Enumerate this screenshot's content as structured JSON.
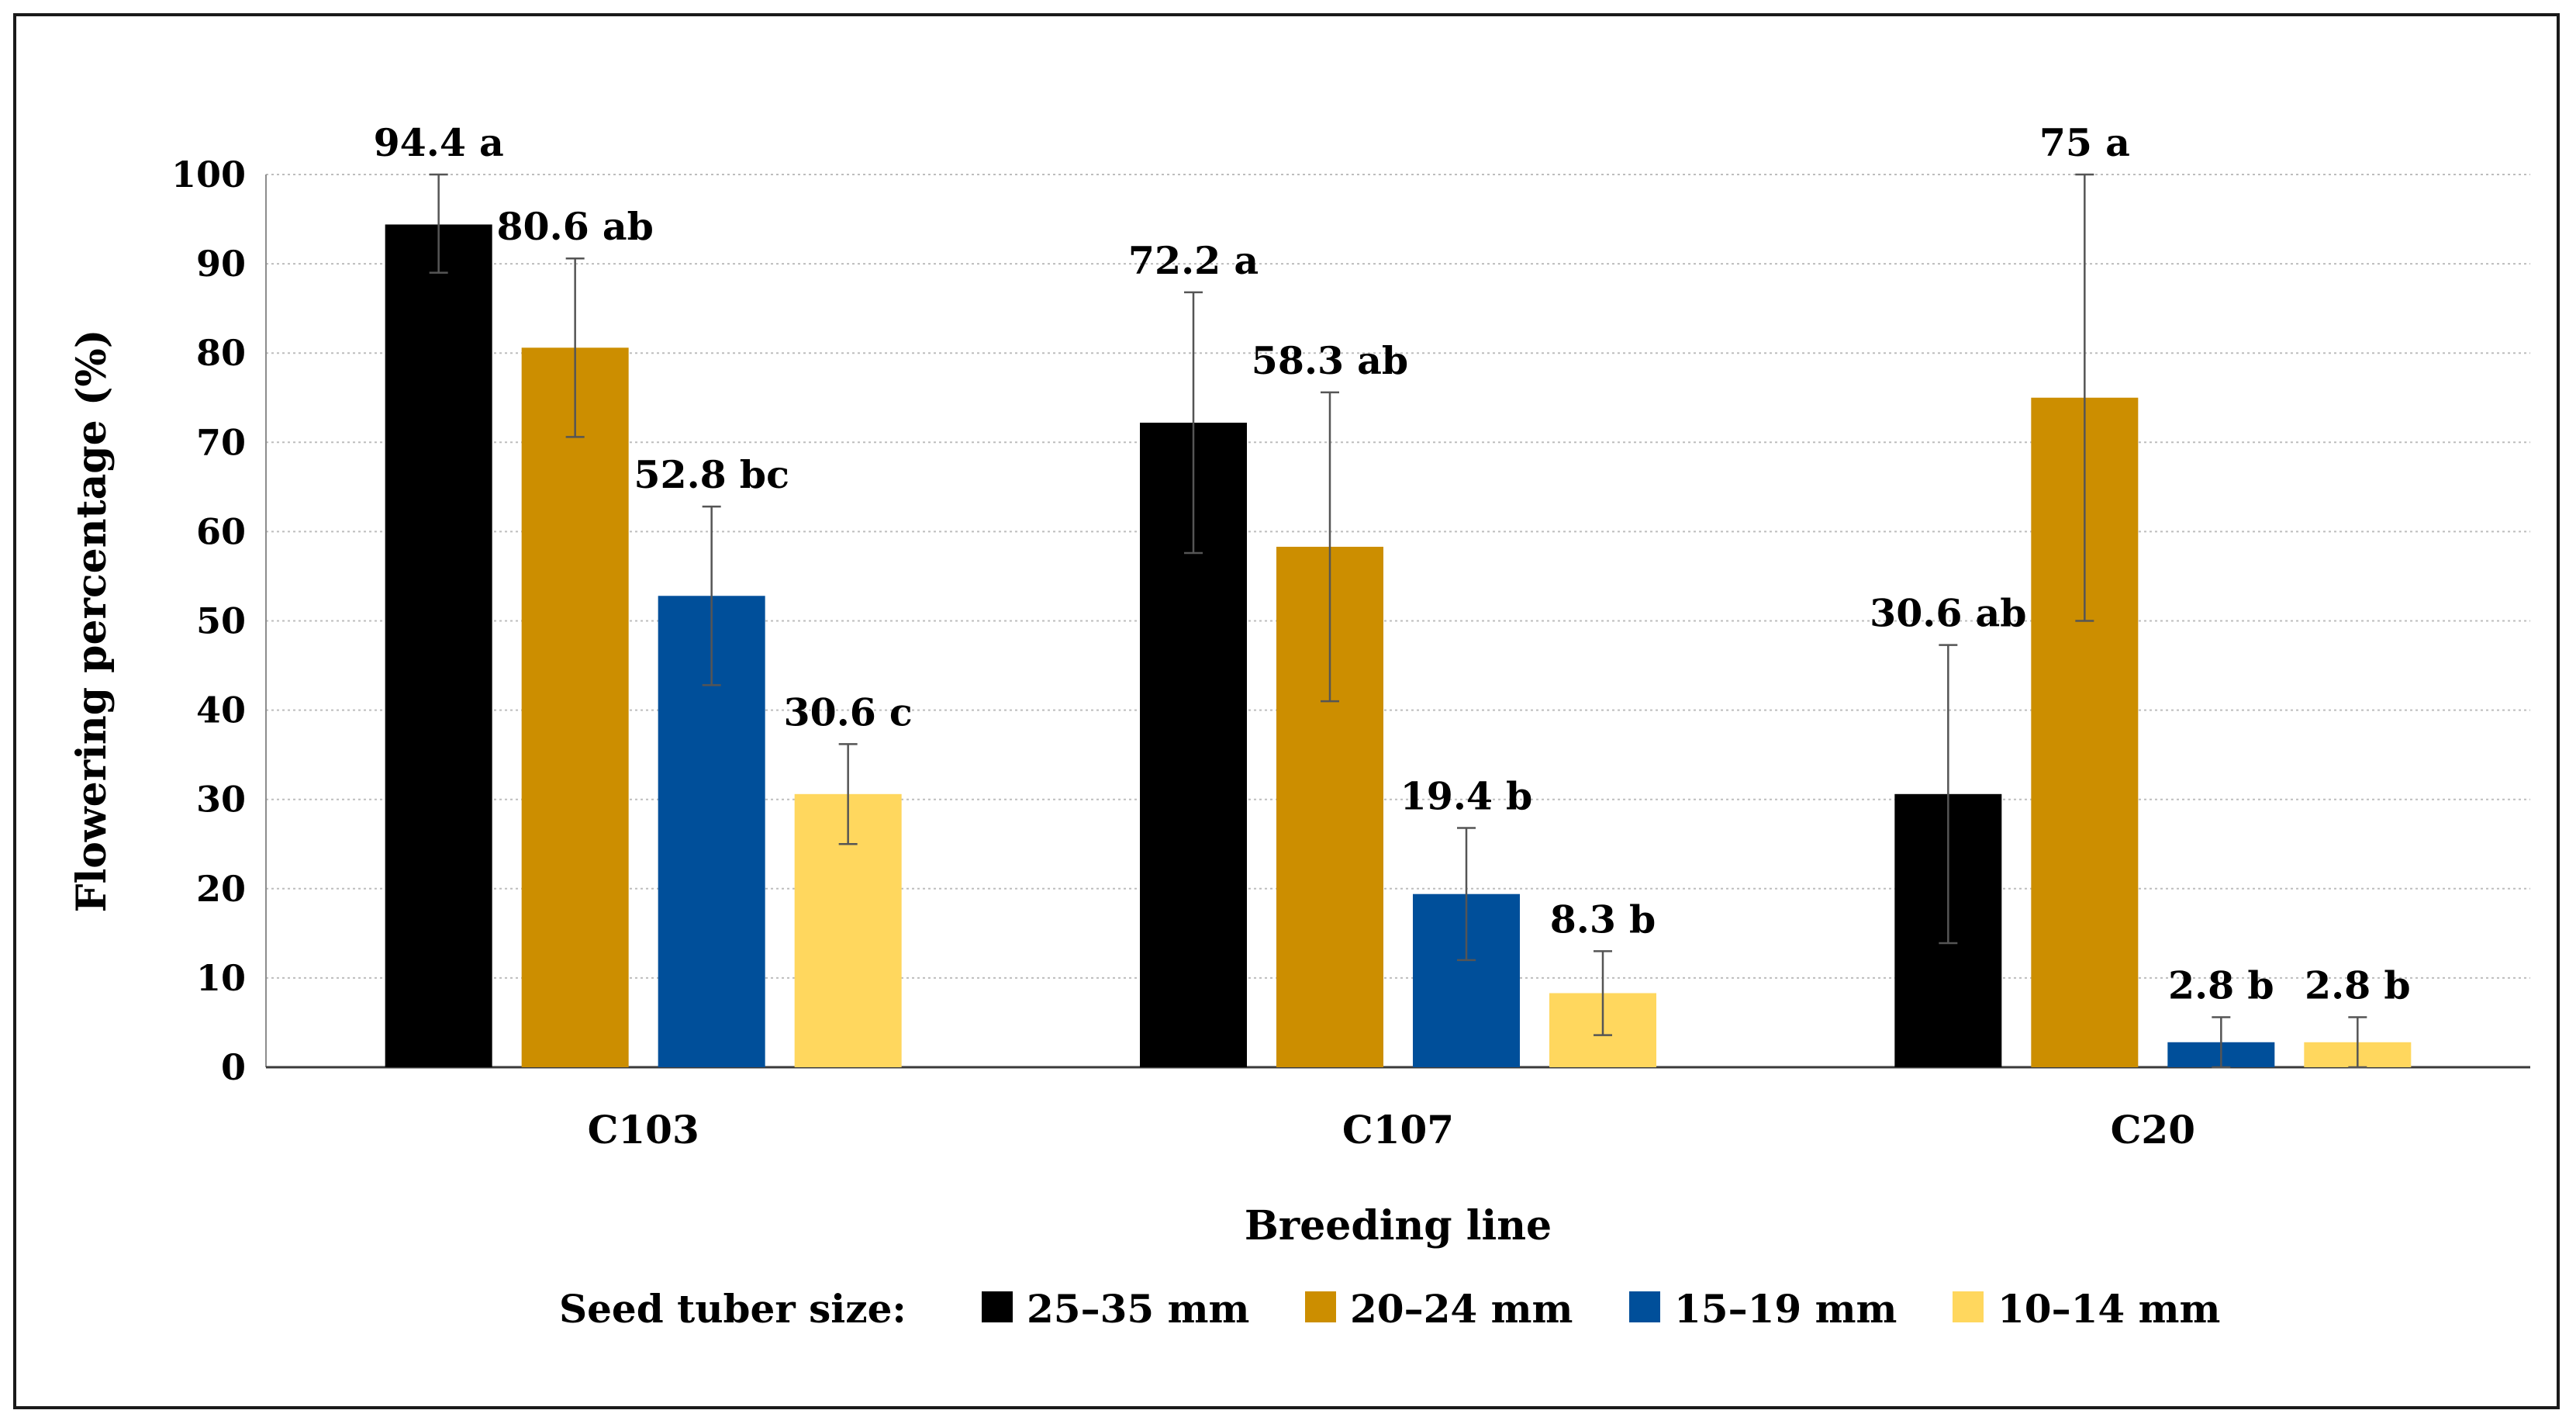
{
  "chart_data": {
    "type": "bar",
    "title": "",
    "xlabel": "Breeding line",
    "ylabel": "Flowering percentage (%)",
    "ylim": [
      0,
      100
    ],
    "yticks": [
      0,
      10,
      20,
      30,
      40,
      50,
      60,
      70,
      80,
      90,
      100
    ],
    "grid": "horizontal dotted",
    "categories": [
      "C103",
      "C107",
      "C20"
    ],
    "series": [
      {
        "name": "25–35 mm",
        "color": "#000000",
        "values": [
          94.4,
          72.2,
          30.6
        ],
        "error_low": [
          89.0,
          57.6,
          13.9
        ],
        "error_high": [
          100.0,
          86.8,
          47.3
        ],
        "labels": [
          "94.4 a",
          "72.2 a",
          "30.6 ab"
        ]
      },
      {
        "name": "20–24 mm",
        "color": "#CC8E00",
        "values": [
          80.6,
          58.3,
          75.0
        ],
        "error_low": [
          70.6,
          41.0,
          50.0
        ],
        "error_high": [
          90.6,
          75.6,
          100.0
        ],
        "labels": [
          "80.6 ab",
          "58.3 ab",
          "75 a"
        ]
      },
      {
        "name": "15–19 mm",
        "color": "#004F9A",
        "values": [
          52.8,
          19.4,
          2.8
        ],
        "error_low": [
          42.8,
          12.0,
          0.0
        ],
        "error_high": [
          62.8,
          26.8,
          5.6
        ],
        "labels": [
          "52.8 bc",
          "19.4 b",
          "2.8 b"
        ]
      },
      {
        "name": "10–14 mm",
        "color": "#FFD75E",
        "values": [
          30.6,
          8.3,
          2.8
        ],
        "error_low": [
          25.0,
          3.6,
          0.0
        ],
        "error_high": [
          36.2,
          13.0,
          5.6
        ],
        "labels": [
          "30.6 c",
          "8.3 b",
          "2.8 b"
        ]
      }
    ],
    "legend": {
      "title": "Seed tuber size:",
      "position": "bottom"
    }
  }
}
